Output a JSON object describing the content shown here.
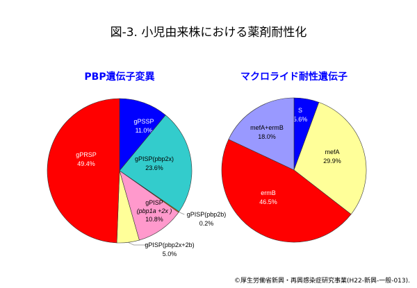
{
  "title": "図-3. 小児由来株における薬剤耐性化",
  "footer": "©厚生労働省新興・再興感染症研究事業(H22-新興-一般-013).",
  "chart_data": [
    {
      "type": "pie",
      "title": "PBP遺伝子変異",
      "slices": [
        {
          "label": "gPSSP",
          "value": 11.0,
          "display": "11.0%",
          "color": "#0000ff",
          "text_color": "#ffffff"
        },
        {
          "label": "gPISP(pbp2x)",
          "value": 23.6,
          "display": "23.6%",
          "color": "#33cccc",
          "text_color": "#000000"
        },
        {
          "label": "gPISP(pbp2b)",
          "value": 0.2,
          "display": "0.2%",
          "color": "#ff9900",
          "text_color": "#000000"
        },
        {
          "label": "gPISP(pbp1a+2x)",
          "label_line1": "gPISP",
          "label_line2": "(pbp1a +2x )",
          "value": 10.8,
          "display": "10.8%",
          "color": "#ff99cc",
          "text_color": "#000000"
        },
        {
          "label": "gPISP(pbp2x+2b)",
          "value": 5.0,
          "display": "5.0%",
          "color": "#ffff99",
          "text_color": "#000000"
        },
        {
          "label": "gPRSP",
          "value": 49.4,
          "display": "49.4%",
          "color": "#ff0000",
          "text_color": "#ffffff"
        }
      ]
    },
    {
      "type": "pie",
      "title": "マクロライド耐性遺伝子",
      "slices": [
        {
          "label": "S",
          "value": 5.6,
          "display": "5.6%",
          "color": "#0000ff",
          "text_color": "#ffffff"
        },
        {
          "label": "mefA",
          "value": 29.9,
          "display": "29.9%",
          "color": "#ffff99",
          "text_color": "#000000"
        },
        {
          "label": "ermB",
          "value": 46.5,
          "display": "46.5%",
          "color": "#ff0000",
          "text_color": "#ffffff"
        },
        {
          "label": "mefA+ermB",
          "value": 18.0,
          "display": "18.0%",
          "color": "#9999ff",
          "text_color": "#000000"
        }
      ]
    }
  ]
}
